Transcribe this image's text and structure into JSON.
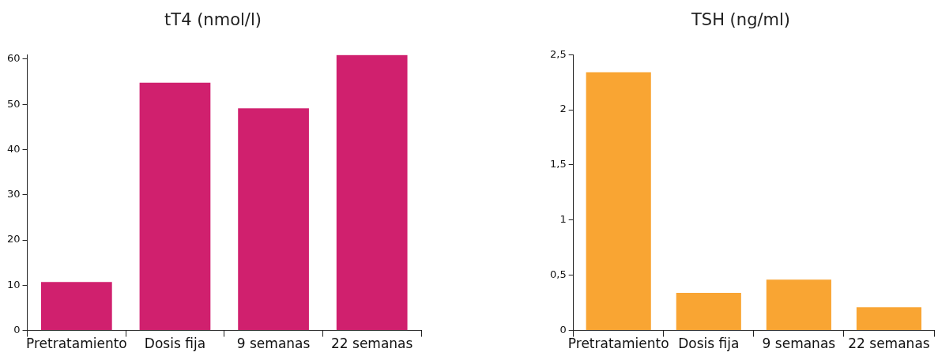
{
  "chart_data": [
    {
      "type": "bar",
      "title": "tT4 (nmol/l)",
      "categories": [
        "Pretratamiento",
        "Dosis fija",
        "9 semanas",
        "22 semanas"
      ],
      "color": "#d0206e",
      "values": [
        10.7,
        54.8,
        49.1,
        60.9
      ],
      "ylim": [
        0,
        61
      ],
      "yticks": [
        0,
        10,
        20,
        30,
        40,
        50,
        60
      ],
      "grid": false,
      "legend": false
    },
    {
      "type": "bar",
      "title": "TSH (ng/ml)",
      "categories": [
        "Pretratamiento",
        "Dosis fija",
        "9 semanas",
        "22 semanas"
      ],
      "color": "#f9a533",
      "values": [
        2.34,
        0.34,
        0.46,
        0.21
      ],
      "ylim": [
        0,
        2.5
      ],
      "yticks": [
        0,
        {
          "value": 0.5,
          "label": "0,5"
        },
        1,
        {
          "value": 1.5,
          "label": "1,5"
        },
        2,
        {
          "value": 2.5,
          "label": "2,5"
        }
      ],
      "grid": false,
      "legend": false
    }
  ]
}
